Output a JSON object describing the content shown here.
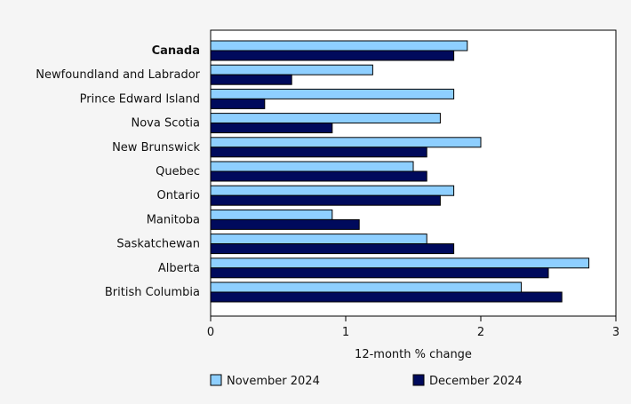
{
  "chart_data": {
    "type": "bar",
    "orientation": "horizontal",
    "categories": [
      "Canada",
      "Newfoundland and Labrador",
      "Prince Edward Island",
      "Nova Scotia",
      "New Brunswick",
      "Quebec",
      "Ontario",
      "Manitoba",
      "Saskatchewan",
      "Alberta",
      "British Columbia"
    ],
    "bold_categories": [
      "Canada"
    ],
    "series": [
      {
        "name": "November 2024",
        "color": "#8ecfff",
        "values": [
          1.9,
          1.2,
          1.8,
          1.7,
          2.0,
          1.5,
          1.8,
          0.9,
          1.6,
          2.8,
          2.3
        ]
      },
      {
        "name": "December 2024",
        "color": "#000a5c",
        "values": [
          1.8,
          0.6,
          0.4,
          0.9,
          1.6,
          1.6,
          1.7,
          1.1,
          1.8,
          2.5,
          2.6
        ]
      }
    ],
    "xlabel": "12-month % change",
    "ylabel": "",
    "title": "",
    "xlim": [
      0,
      3
    ],
    "xticks": [
      0,
      1,
      2,
      3
    ],
    "xtick_labels": [
      "0",
      "1",
      "2",
      "3"
    ],
    "grid": false,
    "legend_position": "bottom"
  }
}
